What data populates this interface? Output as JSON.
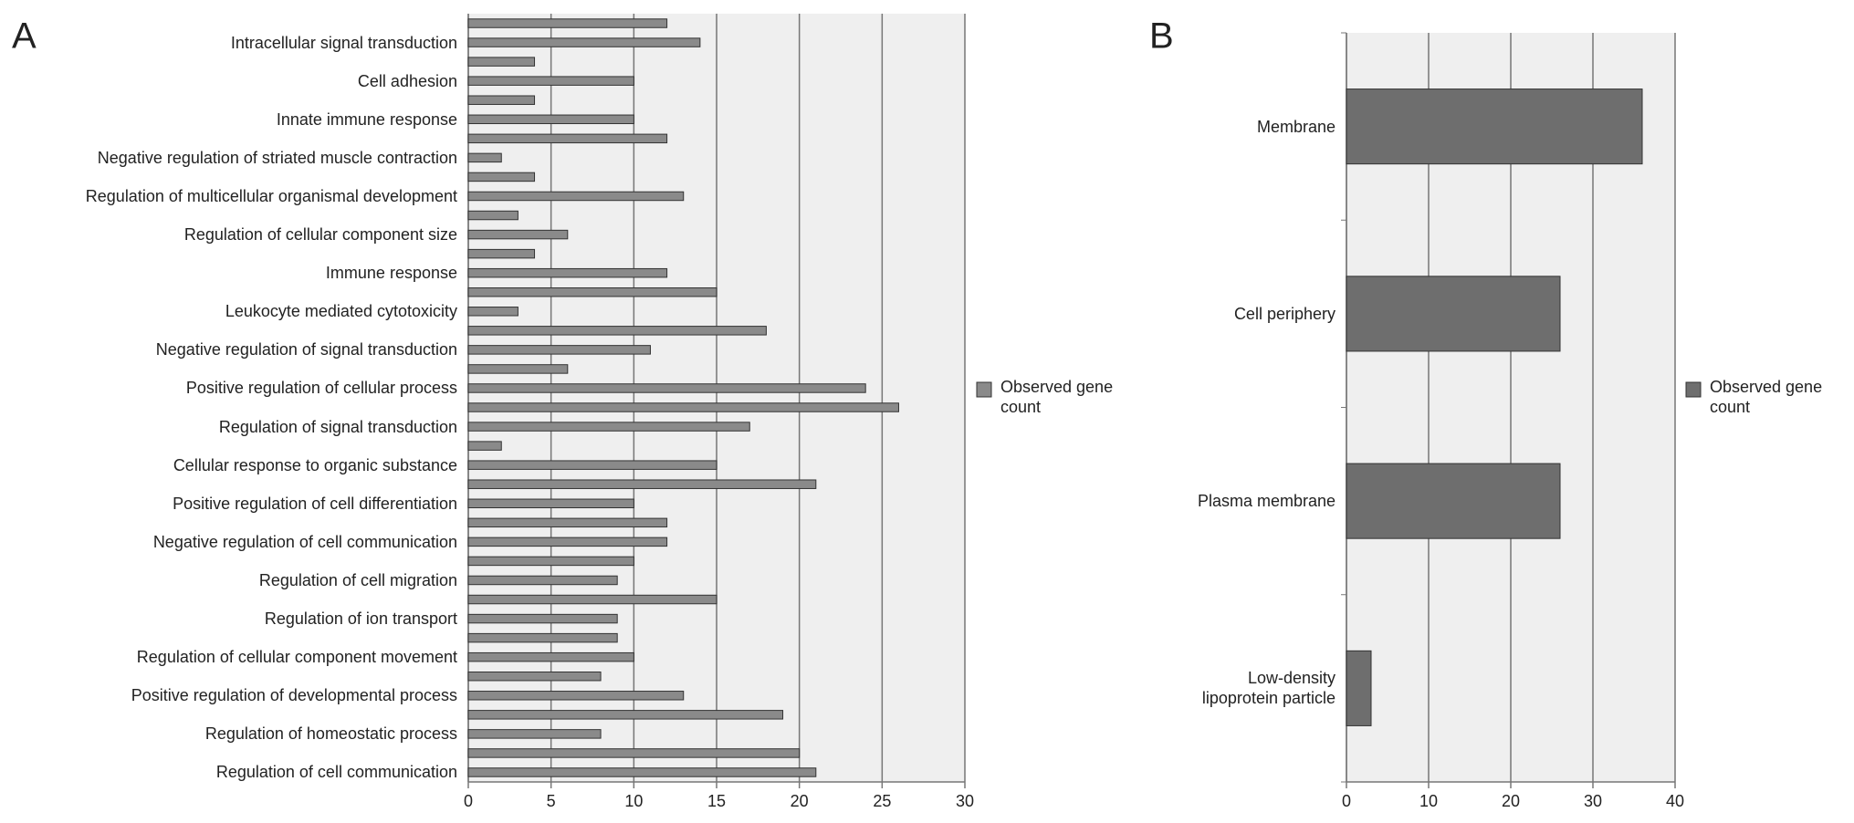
{
  "chart_data": [
    {
      "type": "bar",
      "orientation": "horizontal",
      "panel": "A",
      "categories": [
        null,
        "Intracellular signal transduction",
        null,
        "Cell adhesion",
        null,
        "Innate immune response",
        null,
        "Negative regulation of striated muscle contraction",
        null,
        "Regulation of multicellular organismal development",
        null,
        "Regulation of cellular component size",
        null,
        "Immune response",
        null,
        "Leukocyte mediated cytotoxicity",
        null,
        "Negative regulation of signal transduction",
        null,
        "Positive regulation of cellular process",
        null,
        "Regulation of signal transduction",
        null,
        "Cellular response to organic substance",
        null,
        "Positive regulation of cell differentiation",
        null,
        "Negative regulation of cell communication",
        null,
        "Regulation of cell migration",
        null,
        "Regulation of ion transport",
        null,
        "Regulation of cellular component movement",
        null,
        "Positive regulation of developmental process",
        null,
        "Regulation of homeostatic process",
        null,
        "Regulation of cell communication"
      ],
      "series": [
        {
          "name": "Observed gene count",
          "color": "#8a8a8a",
          "values": [
            12,
            14,
            4,
            10,
            4,
            10,
            12,
            2,
            4,
            13,
            3,
            6,
            4,
            12,
            15,
            3,
            18,
            11,
            6,
            24,
            26,
            17,
            2,
            15,
            21,
            10,
            12,
            12,
            10,
            9,
            15,
            9,
            9,
            10,
            8,
            13,
            19,
            8,
            20,
            21
          ]
        }
      ],
      "xlim": [
        0,
        30
      ],
      "xticks": [
        0,
        5,
        10,
        15,
        20,
        25,
        30
      ],
      "grid": true,
      "legend": "right"
    },
    {
      "type": "bar",
      "orientation": "horizontal",
      "panel": "B",
      "categories": [
        "Membrane",
        "Cell periphery",
        "Plasma membrane",
        "Low-density\nlipoprotein particle"
      ],
      "series": [
        {
          "name": "Observed gene count",
          "color": "#6e6e6e",
          "values": [
            36,
            26,
            26,
            3
          ]
        }
      ],
      "xlim": [
        0,
        40
      ],
      "xticks": [
        0,
        10,
        20,
        30,
        40
      ],
      "grid": true,
      "legend": "right"
    }
  ]
}
